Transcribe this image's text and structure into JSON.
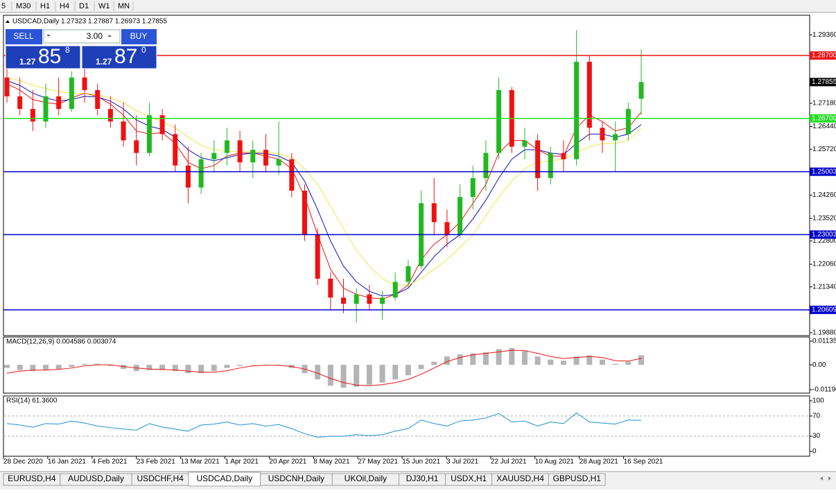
{
  "toolbar": {
    "timeframes": [
      "5",
      "M30",
      "H1",
      "H4",
      "D1",
      "W1",
      "MN"
    ]
  },
  "chart": {
    "header": "USDCAD,Daily  1.27323 1.27887 1.26973 1.27855",
    "trade": {
      "sell": "SELL",
      "buy": "BUY",
      "lots": "3.00",
      "bid": {
        "big": "1.27",
        "main": "85",
        "pip": "8"
      },
      "ask": {
        "big": "1.27",
        "main": "87",
        "pip": "0"
      }
    },
    "price": {
      "ylim": [
        1.1979,
        1.2998
      ],
      "yticks": [
        {
          "value": 1.2936,
          "label": "1.29360"
        },
        {
          "value": 1.2718,
          "label": "1.27180"
        },
        {
          "value": 1.2644,
          "label": "1.26440"
        },
        {
          "value": 1.2572,
          "label": "1.25720"
        },
        {
          "value": 1.2426,
          "label": "1.24260"
        },
        {
          "value": 1.2352,
          "label": "1.23520"
        },
        {
          "value": 1.228,
          "label": "1.22800"
        },
        {
          "value": 1.2206,
          "label": "1.22060"
        },
        {
          "value": 1.2134,
          "label": "1.21340"
        },
        {
          "value": 1.1988,
          "label": "1.19880"
        }
      ],
      "up_color": "#22b822",
      "down_color": "#ee1111",
      "candles": [
        [
          1.28,
          1.286,
          1.272,
          1.274
        ],
        [
          1.274,
          1.28,
          1.268,
          1.27
        ],
        [
          1.27,
          1.276,
          1.263,
          1.266
        ],
        [
          1.266,
          1.278,
          1.264,
          1.274
        ],
        [
          1.274,
          1.28,
          1.268,
          1.27
        ],
        [
          1.27,
          1.282,
          1.269,
          1.28
        ],
        [
          1.28,
          1.284,
          1.272,
          1.276
        ],
        [
          1.276,
          1.278,
          1.268,
          1.27
        ],
        [
          1.27,
          1.274,
          1.264,
          1.266
        ],
        [
          1.266,
          1.272,
          1.258,
          1.26
        ],
        [
          1.26,
          1.268,
          1.252,
          1.256
        ],
        [
          1.256,
          1.272,
          1.255,
          1.268
        ],
        [
          1.268,
          1.27,
          1.26,
          1.262
        ],
        [
          1.262,
          1.265,
          1.25,
          1.252
        ],
        [
          1.252,
          1.258,
          1.24,
          1.245
        ],
        [
          1.245,
          1.256,
          1.243,
          1.254
        ],
        [
          1.254,
          1.26,
          1.25,
          1.256
        ],
        [
          1.256,
          1.264,
          1.252,
          1.26
        ],
        [
          1.26,
          1.263,
          1.25,
          1.253
        ],
        [
          1.253,
          1.26,
          1.248,
          1.257
        ],
        [
          1.257,
          1.262,
          1.25,
          1.252
        ],
        [
          1.252,
          1.266,
          1.249,
          1.254
        ],
        [
          1.254,
          1.256,
          1.242,
          1.244
        ],
        [
          1.244,
          1.246,
          1.228,
          1.23
        ],
        [
          1.23,
          1.232,
          1.214,
          1.216
        ],
        [
          1.216,
          1.218,
          1.206,
          1.21
        ],
        [
          1.21,
          1.216,
          1.205,
          1.208
        ],
        [
          1.208,
          1.213,
          1.202,
          1.211
        ],
        [
          1.211,
          1.214,
          1.206,
          1.208
        ],
        [
          1.208,
          1.212,
          1.203,
          1.21
        ],
        [
          1.21,
          1.218,
          1.209,
          1.215
        ],
        [
          1.215,
          1.222,
          1.213,
          1.22
        ],
        [
          1.22,
          1.244,
          1.219,
          1.24
        ],
        [
          1.24,
          1.248,
          1.23,
          1.234
        ],
        [
          1.234,
          1.238,
          1.226,
          1.23
        ],
        [
          1.23,
          1.246,
          1.229,
          1.242
        ],
        [
          1.242,
          1.252,
          1.238,
          1.248
        ],
        [
          1.248,
          1.26,
          1.244,
          1.256
        ],
        [
          1.256,
          1.28,
          1.254,
          1.276
        ],
        [
          1.276,
          1.277,
          1.256,
          1.258
        ],
        [
          1.258,
          1.264,
          1.254,
          1.26
        ],
        [
          1.26,
          1.262,
          1.244,
          1.248
        ],
        [
          1.248,
          1.258,
          1.246,
          1.256
        ],
        [
          1.256,
          1.26,
          1.25,
          1.254
        ],
        [
          1.254,
          1.295,
          1.252,
          1.285
        ],
        [
          1.285,
          1.287,
          1.26,
          1.264
        ],
        [
          1.264,
          1.266,
          1.256,
          1.26
        ],
        [
          1.26,
          1.266,
          1.25,
          1.262
        ],
        [
          1.262,
          1.272,
          1.26,
          1.27
        ],
        [
          1.27323,
          1.289,
          1.268,
          1.27855
        ]
      ],
      "ma": [
        {
          "color": "#ee1111",
          "values": [
            1.278,
            1.276,
            1.273,
            1.272,
            1.2715,
            1.2735,
            1.275,
            1.274,
            1.2715,
            1.268,
            1.263,
            1.262,
            1.2625,
            1.259,
            1.253,
            1.251,
            1.252,
            1.255,
            1.256,
            1.256,
            1.255,
            1.254,
            1.251,
            1.242,
            1.23,
            1.219,
            1.213,
            1.211,
            1.21,
            1.2095,
            1.211,
            1.214,
            1.222,
            1.227,
            1.23,
            1.234,
            1.24,
            1.246,
            1.256,
            1.26,
            1.26,
            1.257,
            1.255,
            1.255,
            1.264,
            1.268,
            1.266,
            1.263,
            1.264,
            1.269
          ]
        },
        {
          "color": "#1010c0",
          "values": [
            1.279,
            1.2775,
            1.275,
            1.2735,
            1.2725,
            1.273,
            1.274,
            1.2738,
            1.2725,
            1.27,
            1.2665,
            1.2645,
            1.2635,
            1.261,
            1.257,
            1.2545,
            1.2535,
            1.2545,
            1.2555,
            1.256,
            1.2558,
            1.255,
            1.253,
            1.247,
            1.238,
            1.228,
            1.22,
            1.215,
            1.212,
            1.2105,
            1.211,
            1.213,
            1.218,
            1.223,
            1.227,
            1.23,
            1.235,
            1.241,
            1.248,
            1.254,
            1.257,
            1.257,
            1.256,
            1.2555,
            1.259,
            1.262,
            1.262,
            1.261,
            1.262,
            1.265
          ]
        },
        {
          "color": "#f2e34a",
          "values": [
            1.28,
            1.279,
            1.2775,
            1.2765,
            1.2755,
            1.275,
            1.275,
            1.2745,
            1.2735,
            1.272,
            1.2695,
            1.2675,
            1.266,
            1.264,
            1.261,
            1.2585,
            1.257,
            1.2565,
            1.2565,
            1.2565,
            1.2562,
            1.2558,
            1.2545,
            1.251,
            1.246,
            1.239,
            1.232,
            1.225,
            1.22,
            1.216,
            1.214,
            1.214,
            1.216,
            1.219,
            1.222,
            1.226,
            1.23,
            1.236,
            1.242,
            1.247,
            1.251,
            1.253,
            1.2535,
            1.254,
            1.256,
            1.258,
            1.259,
            1.259,
            1.26,
            1.264
          ]
        }
      ],
      "levels": [
        {
          "value": 1.287,
          "label": "1.28700",
          "color": "#ee1111"
        },
        {
          "value": 1.267,
          "label": "1.26700",
          "color": "#22dd22"
        },
        {
          "value": 1.25003,
          "label": "1.25003",
          "color": "#0000cc"
        },
        {
          "value": 1.23003,
          "label": "1.23003",
          "color": "#0000cc"
        },
        {
          "value": 1.20609,
          "label": "1.20609",
          "color": "#0000cc"
        }
      ],
      "last": {
        "value": 1.27855,
        "label": "1.27855"
      }
    },
    "macd": {
      "title": "MACD(12,26,9) 0.004586 0.003074",
      "ylim": [
        -0.01356,
        0.01334
      ],
      "yticks": [
        {
          "value": 0.01135,
          "label": "0.01135"
        },
        {
          "value": 0,
          "label": "0.00"
        },
        {
          "value": -0.0119,
          "label": "-0.01190"
        }
      ],
      "hist_color": "#b4b4b4",
      "signal_color": "#ee1111",
      "histogram": [
        -0.0015,
        -0.0025,
        -0.003,
        -0.0025,
        -0.002,
        -0.001,
        0.0005,
        0.0005,
        -0.0005,
        -0.002,
        -0.003,
        -0.0025,
        -0.0025,
        -0.003,
        -0.004,
        -0.004,
        -0.003,
        -0.0015,
        -0.0005,
        0,
        -0.0002,
        -0.0005,
        -0.0015,
        -0.004,
        -0.007,
        -0.01,
        -0.011,
        -0.0105,
        -0.0095,
        -0.0085,
        -0.007,
        -0.005,
        -0.002,
        0.0015,
        0.004,
        0.005,
        0.0055,
        0.006,
        0.0075,
        0.008,
        0.0065,
        0.004,
        0.0025,
        0.002,
        0.004,
        0.0045,
        0.0025,
        0.0005,
        0.0015,
        0.004586
      ],
      "signal": [
        -0.004,
        -0.003,
        -0.0025,
        -0.0025,
        -0.0022,
        -0.0015,
        -0.0005,
        0,
        0,
        -0.0008,
        -0.0015,
        -0.002,
        -0.0022,
        -0.0025,
        -0.003,
        -0.0035,
        -0.0035,
        -0.0028,
        -0.0015,
        -0.0005,
        -0.0002,
        -0.0002,
        -0.0008,
        -0.002,
        -0.004,
        -0.0065,
        -0.0085,
        -0.0097,
        -0.01,
        -0.0095,
        -0.0085,
        -0.007,
        -0.0045,
        -0.0015,
        0.0015,
        0.0035,
        0.0048,
        0.0055,
        0.0062,
        0.007,
        0.0068,
        0.0055,
        0.004,
        0.003,
        0.0035,
        0.004,
        0.0035,
        0.002,
        0.0018,
        0.003074
      ]
    },
    "rsi": {
      "title": "RSI(14) 61.3600",
      "ylim": [
        -9.6,
        109.6
      ],
      "yticks": [
        100,
        70,
        30,
        0
      ],
      "levels": [
        70,
        30
      ],
      "color": "#1e8fd6",
      "values": [
        55,
        52,
        48,
        55,
        54,
        60,
        56,
        50,
        47,
        44,
        42,
        55,
        48,
        44,
        40,
        52,
        54,
        58,
        52,
        55,
        50,
        53,
        45,
        35,
        28,
        30,
        30,
        33,
        31,
        33,
        40,
        45,
        62,
        55,
        50,
        60,
        62,
        66,
        75,
        58,
        60,
        50,
        58,
        55,
        76,
        58,
        56,
        54,
        62,
        61.36
      ]
    },
    "dates": [
      "28 Dec 2020",
      "16 Jan 2021",
      "4 Feb 2021",
      "23 Feb 2021",
      "13 Mar 2021",
      "1 Apr 2021",
      "20 Apr 2021",
      "8 May 2021",
      "27 May 2021",
      "15 Jun 2021",
      "3 Jul 2021",
      "22 Jul 2021",
      "10 Aug 2021",
      "28 Aug 2021",
      "16 Sep 2021"
    ]
  },
  "tabs": {
    "items": [
      "EURUSD,H4",
      "AUDUSD,Daily",
      "USDCHF,H4",
      "USDCAD,Daily",
      "USDCNH,Daily",
      "UKOil,Daily",
      "DJ30,H1",
      "USDX,H1",
      "XAUUSD,H4",
      "GBPUSD,H1"
    ],
    "active": 3
  }
}
